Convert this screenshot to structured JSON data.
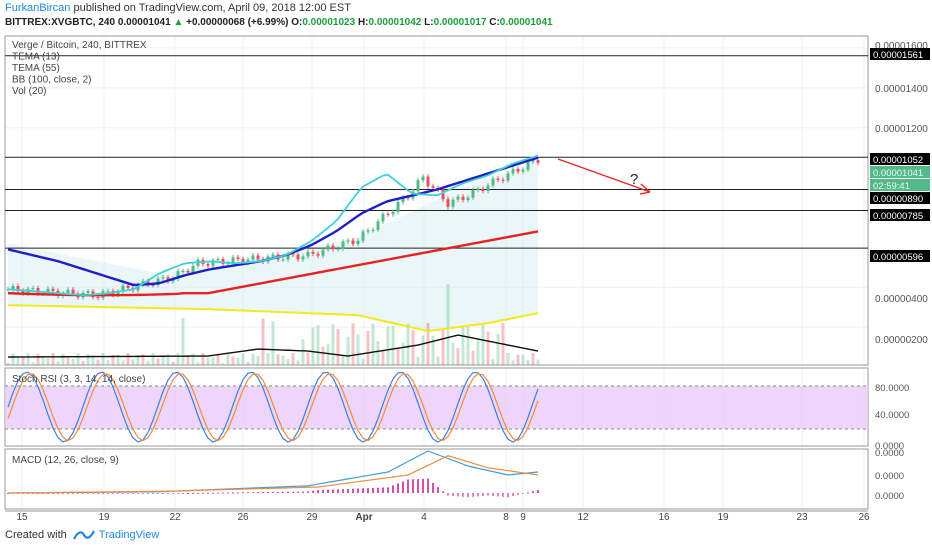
{
  "header": {
    "author": "FurkanBircan",
    "published_text": "published on TradingView.com, April 09, 2018 12:00 EST",
    "symbol_line": "BITTREX:XVGBTC, 240",
    "last_price": "0.00001041",
    "change_text": "+0.00000068 (+6.99%)",
    "ohlc": {
      "o_label": "O:",
      "o": "0.00001023",
      "h_label": "H:",
      "h": "0.00001042",
      "l_label": "L:",
      "l": "0.00001017",
      "c_label": "C:",
      "c": "0.00001041"
    }
  },
  "legend": [
    "Verge / Bitcoin, 240, BITTREX",
    "TEMA (13)",
    "TEMA (55)",
    "BB (100, close, 2)",
    "Vol (20)"
  ],
  "price_labels": [
    {
      "text": "0.00001600",
      "kind": "tick"
    },
    {
      "text": "0.00001561",
      "kind": "box"
    },
    {
      "text": "0.00001400",
      "kind": "tick"
    },
    {
      "text": "0.00001200",
      "kind": "tick"
    },
    {
      "text": "0.00001052",
      "kind": "box"
    },
    {
      "text": "0.00001041",
      "kind": "current"
    },
    {
      "text": "02:59:41",
      "kind": "timer"
    },
    {
      "text": "0.00000890",
      "kind": "box"
    },
    {
      "text": "0.00000785",
      "kind": "box"
    },
    {
      "text": "0.00000596",
      "kind": "box"
    },
    {
      "text": "0.00000400",
      "kind": "tick"
    },
    {
      "text": "0.00000200",
      "kind": "tick"
    }
  ],
  "annotation_text": "?",
  "stoch": {
    "label": "Stoch RSI (3, 3, 14, 14, close)",
    "ticks": [
      "80.0000",
      "40.0000",
      "0.0000"
    ]
  },
  "macd": {
    "label": "MACD (12, 26, close, 9)",
    "ticks": [
      "0.0000",
      "0.0000",
      "0.0000"
    ]
  },
  "xaxis": [
    "15",
    "19",
    "22",
    "26",
    "29",
    "Apr",
    "4",
    "8",
    "9",
    "12",
    "16",
    "19",
    "23",
    "26"
  ],
  "footer": {
    "created_with": "Created with",
    "brand": "TradingView"
  },
  "colors": {
    "up": "#53b987",
    "down": "#eb4d5c",
    "tema13": "#3fd0d8",
    "tema55": "#1d1fc7",
    "bb_basis": "#e8211f",
    "bb_lower": "#f5e91a",
    "vol_ma": "#111111",
    "stoch_k": "#3f7fe0",
    "stoch_d": "#f28b3c",
    "stoch_band": "#e7c8f7",
    "macd_line": "#3f9be0",
    "signal_line": "#f28b3c",
    "arrow": "#e8211f",
    "label_current": "#53b987",
    "label_box": "#000000"
  },
  "chart_data": {
    "type": "line",
    "title": "Verge / Bitcoin, 240, BITTREX",
    "xlabel": "",
    "ylabel": "",
    "x_ticks": [
      "15",
      "19",
      "22",
      "26",
      "29",
      "Apr",
      "4",
      "8",
      "9",
      "12",
      "16",
      "19",
      "23",
      "26"
    ],
    "ylim": [
      1e-07,
      1.66e-05
    ],
    "horizontal_levels": [
      1.561e-05,
      1.052e-05,
      8.9e-06,
      7.85e-06,
      5.96e-06
    ],
    "series": [
      {
        "name": "TEMA (13)",
        "values": [
          3.9e-06,
          3.8e-06,
          3.7e-06,
          3.6e-06,
          3.7e-06,
          3.9e-06,
          4.7e-06,
          5.2e-06,
          5.3e-06,
          5.2e-06,
          5.3e-06,
          5.6e-06,
          6.3e-06,
          7.3e-06,
          9e-06,
          9.7e-06,
          8.7e-06,
          8.6e-06,
          9.2e-06,
          9.6e-06,
          1.02e-05,
          1.06e-05
        ]
      },
      {
        "name": "TEMA (55)",
        "values": [
          5.9e-06,
          5.6e-06,
          5.3e-06,
          4.9e-06,
          4.5e-06,
          4.1e-06,
          4.2e-06,
          4.6e-06,
          4.9e-06,
          5.1e-06,
          5.3e-06,
          5.6e-06,
          6.1e-06,
          6.8e-06,
          7.7e-06,
          8.3e-06,
          8.6e-06,
          8.9e-06,
          9.3e-06,
          9.7e-06,
          1.01e-05,
          1.05e-05
        ]
      }
    ]
  }
}
